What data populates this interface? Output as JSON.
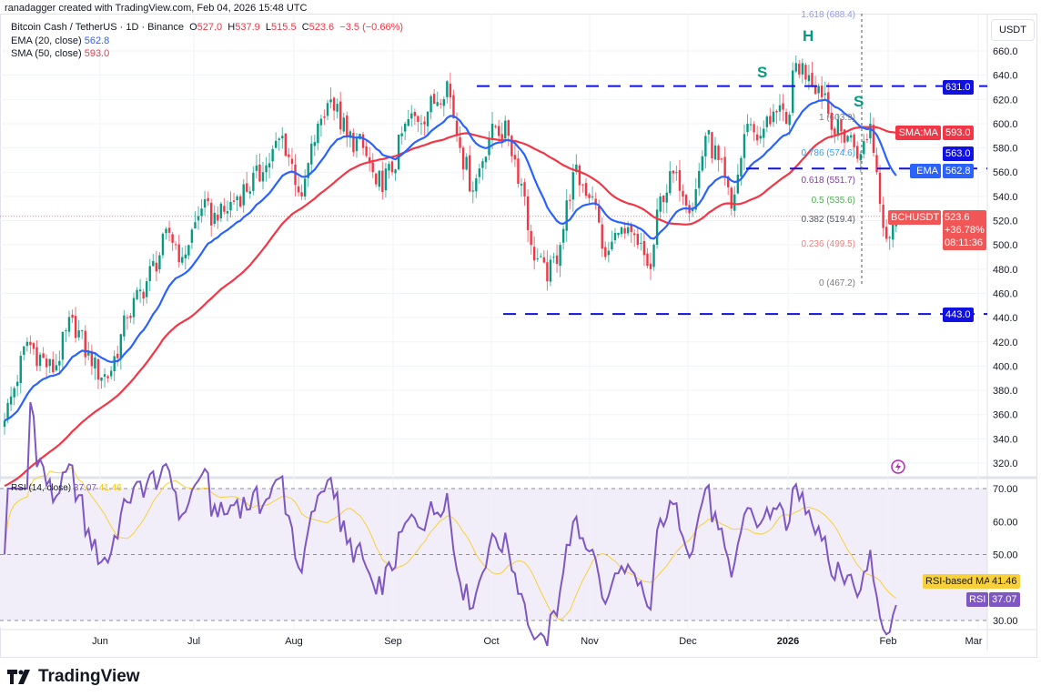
{
  "credit": "ranadagger created with TradingView.com, Feb 04, 2026 15:48 UTC",
  "legend": {
    "symbol": "Bitcoin Cash / TetherUS · 1D · Binance",
    "o_label": "O",
    "o": "527.0",
    "h_label": "H",
    "h": "537.9",
    "l_label": "L",
    "l": "515.5",
    "c_label": "C",
    "c": "523.6",
    "change": "−3.5 (−0.66%)",
    "ema_label": "EMA (20, close)",
    "ema_value": "562.8",
    "sma_label": "SMA (50, close)",
    "sma_value": "593.0"
  },
  "currency": "USDT",
  "tags": {
    "r631": "631.0",
    "sma_name": "SMA:MA",
    "sma": "593.0",
    "r563": "563.0",
    "ema_name": "EMA",
    "ema": "562.8",
    "sym": "BCHUSDT",
    "price": "523.6",
    "pct": "+36.78%",
    "timer": "08:11:36",
    "s443": "443.0",
    "rsima_name": "RSI-based MA",
    "rsima": "41.46",
    "rsi_name": "RSI",
    "rsi": "37.07"
  },
  "rsi_legend": {
    "label": "RSI (14, close)",
    "rsi": "37.07",
    "ma": "41.46"
  },
  "fib": [
    {
      "label": "1.618 (688.4)",
      "price": 688.4,
      "color": "#9598f0"
    },
    {
      "label": "1 (603.9)",
      "price": 603.9,
      "color": "#787b86"
    },
    {
      "label": "0.786 (574.6)",
      "price": 574.6,
      "color": "#3d9ee0"
    },
    {
      "label": "0.618 (551.7)",
      "price": 551.7,
      "color": "#7b3fa0"
    },
    {
      "label": "0.5 (535.6)",
      "price": 535.6,
      "color": "#4caf50"
    },
    {
      "label": "0.382 (519.4)",
      "price": 519.4,
      "color": "#555a66"
    },
    {
      "label": "0.236 (499.5)",
      "price": 499.5,
      "color": "#f08080"
    },
    {
      "label": "0 (467.2)",
      "price": 467.2,
      "color": "#787b86"
    }
  ],
  "patterns": [
    "S",
    "H",
    "S"
  ],
  "logo": "TradingView",
  "colors": {
    "up": "#089981",
    "down": "#f23645",
    "ema": "#2962ff",
    "sma": "#f23645",
    "rsi": "#7e57c2",
    "rsima": "#f7d03c",
    "level": "#1010e0"
  },
  "chart_data": {
    "type": "candlestick",
    "title": "Bitcoin Cash / TetherUS · 1D · Binance",
    "start_date": "2025-05-05",
    "key_closes": [
      [
        0,
        355
      ],
      [
        7,
        420
      ],
      [
        15,
        395
      ],
      [
        21,
        440
      ],
      [
        27,
        400
      ],
      [
        32,
        390
      ],
      [
        38,
        440
      ],
      [
        44,
        470
      ],
      [
        51,
        510
      ],
      [
        55,
        490
      ],
      [
        61,
        530
      ],
      [
        66,
        520
      ],
      [
        72,
        540
      ],
      [
        80,
        560
      ],
      [
        86,
        590
      ],
      [
        92,
        540
      ],
      [
        97,
        600
      ],
      [
        101,
        620
      ],
      [
        106,
        590
      ],
      [
        111,
        580
      ],
      [
        115,
        550
      ],
      [
        120,
        560
      ],
      [
        124,
        600
      ],
      [
        131,
        610
      ],
      [
        137,
        635
      ],
      [
        141,
        580
      ],
      [
        145,
        545
      ],
      [
        151,
        600
      ],
      [
        156,
        590
      ],
      [
        161,
        540
      ],
      [
        163,
        500
      ],
      [
        168,
        470
      ],
      [
        172,
        500
      ],
      [
        176,
        560
      ],
      [
        182,
        540
      ],
      [
        186,
        490
      ],
      [
        190,
        510
      ],
      [
        196,
        500
      ],
      [
        200,
        480
      ],
      [
        203,
        540
      ],
      [
        208,
        560
      ],
      [
        213,
        530
      ],
      [
        217,
        590
      ],
      [
        221,
        570
      ],
      [
        225,
        530
      ],
      [
        230,
        600
      ],
      [
        234,
        590
      ],
      [
        238,
        610
      ],
      [
        242,
        600
      ],
      [
        245,
        650
      ],
      [
        249,
        640
      ],
      [
        254,
        625
      ],
      [
        256,
        595
      ],
      [
        261,
        590
      ],
      [
        265,
        575
      ],
      [
        268,
        600
      ],
      [
        270,
        560
      ],
      [
        273,
        505
      ],
      [
        276,
        523.6
      ]
    ],
    "price_axis": {
      "ticks": [
        320,
        340,
        360,
        380,
        400,
        420,
        440,
        460,
        480,
        500,
        520,
        540,
        560,
        580,
        600,
        620,
        640,
        660
      ],
      "range": [
        310,
        690
      ]
    },
    "time_axis": [
      "Jun",
      "Jul",
      "Aug",
      "Sep",
      "Oct",
      "Nov",
      "Dec",
      "2026",
      "Feb",
      "Mar"
    ],
    "levels": [
      631.0,
      563.0,
      443.0
    ],
    "rsi_axis": {
      "ticks": [
        "30.00",
        "40.00",
        "50.00",
        "60.00",
        "70.00"
      ]
    },
    "indicators": [
      "EMA 20",
      "SMA 50",
      "RSI 14",
      "RSI-based MA 14"
    ]
  }
}
